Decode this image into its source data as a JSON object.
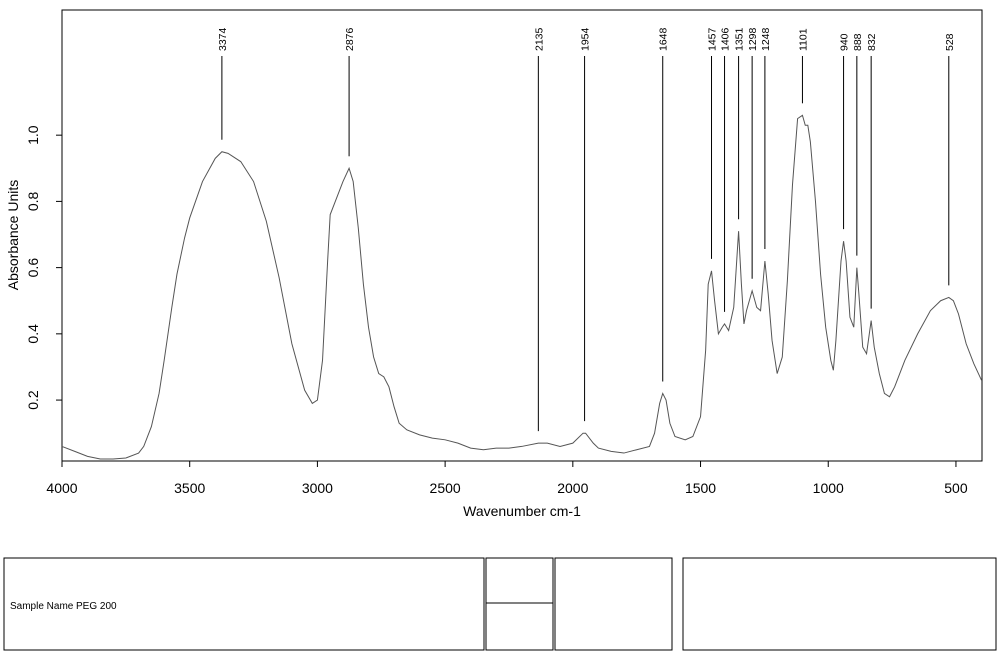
{
  "chart_data": {
    "type": "line",
    "x_label": "Wavenumber cm-1",
    "y_label": "Absorbance Units",
    "xlim": [
      4000,
      398
    ],
    "ylim": [
      0.016,
      1.378
    ],
    "xticks": [
      4000,
      3500,
      3000,
      2500,
      2000,
      1500,
      1000,
      500
    ],
    "yticks": [
      0.2,
      0.4,
      0.6,
      0.8,
      {
        "value": 1,
        "label": "1.0"
      }
    ],
    "color": "#555555",
    "x": [
      4000,
      3950,
      3900,
      3850,
      3800,
      3750,
      3700,
      3680,
      3650,
      3620,
      3600,
      3570,
      3550,
      3520,
      3500,
      3450,
      3400,
      3374,
      3350,
      3300,
      3250,
      3200,
      3150,
      3100,
      3050,
      3020,
      3000,
      2980,
      2960,
      2950,
      2930,
      2900,
      2876,
      2860,
      2840,
      2820,
      2800,
      2780,
      2760,
      2740,
      2720,
      2700,
      2680,
      2650,
      2600,
      2550,
      2500,
      2450,
      2400,
      2350,
      2300,
      2250,
      2200,
      2135,
      2100,
      2050,
      2000,
      1960,
      1950,
      1920,
      1900,
      1850,
      1800,
      1750,
      1700,
      1680,
      1660,
      1648,
      1635,
      1620,
      1600,
      1560,
      1530,
      1500,
      1480,
      1470,
      1457,
      1445,
      1430,
      1415,
      1406,
      1390,
      1370,
      1351,
      1340,
      1330,
      1320,
      1298,
      1280,
      1265,
      1248,
      1235,
      1220,
      1200,
      1180,
      1160,
      1140,
      1120,
      1101,
      1090,
      1080,
      1070,
      1050,
      1030,
      1010,
      990,
      980,
      970,
      950,
      940,
      930,
      915,
      900,
      888,
      880,
      865,
      850,
      832,
      820,
      800,
      780,
      760,
      740,
      700,
      650,
      600,
      560,
      528,
      510,
      490,
      460,
      430,
      400
    ],
    "values": [
      0.06,
      0.045,
      0.03,
      0.022,
      0.022,
      0.025,
      0.04,
      0.06,
      0.12,
      0.22,
      0.32,
      0.48,
      0.58,
      0.69,
      0.75,
      0.86,
      0.93,
      0.95,
      0.945,
      0.92,
      0.86,
      0.74,
      0.57,
      0.37,
      0.23,
      0.19,
      0.2,
      0.32,
      0.62,
      0.76,
      0.8,
      0.86,
      0.9,
      0.86,
      0.72,
      0.55,
      0.42,
      0.33,
      0.28,
      0.27,
      0.24,
      0.18,
      0.13,
      0.11,
      0.095,
      0.085,
      0.08,
      0.07,
      0.055,
      0.05,
      0.055,
      0.055,
      0.06,
      0.07,
      0.07,
      0.06,
      0.07,
      0.1,
      0.1,
      0.07,
      0.055,
      0.045,
      0.04,
      0.05,
      0.06,
      0.1,
      0.19,
      0.22,
      0.2,
      0.13,
      0.09,
      0.08,
      0.09,
      0.15,
      0.35,
      0.55,
      0.59,
      0.5,
      0.4,
      0.42,
      0.43,
      0.41,
      0.48,
      0.71,
      0.55,
      0.43,
      0.47,
      0.53,
      0.48,
      0.47,
      0.62,
      0.52,
      0.38,
      0.28,
      0.33,
      0.56,
      0.85,
      1.05,
      1.06,
      1.03,
      1.03,
      0.98,
      0.8,
      0.58,
      0.42,
      0.32,
      0.29,
      0.38,
      0.62,
      0.68,
      0.62,
      0.45,
      0.42,
      0.6,
      0.52,
      0.36,
      0.34,
      0.44,
      0.36,
      0.28,
      0.22,
      0.21,
      0.24,
      0.32,
      0.4,
      0.47,
      0.5,
      0.51,
      0.5,
      0.46,
      0.37,
      0.31,
      0.26
    ],
    "peaks": [
      3374,
      2876,
      2135,
      1954,
      1648,
      1457,
      1406,
      1351,
      1298,
      1248,
      1101,
      940,
      888,
      832,
      528
    ]
  },
  "info_panel": {
    "sample_name_label": "Sample Name",
    "sample_name": "PEG 200"
  }
}
